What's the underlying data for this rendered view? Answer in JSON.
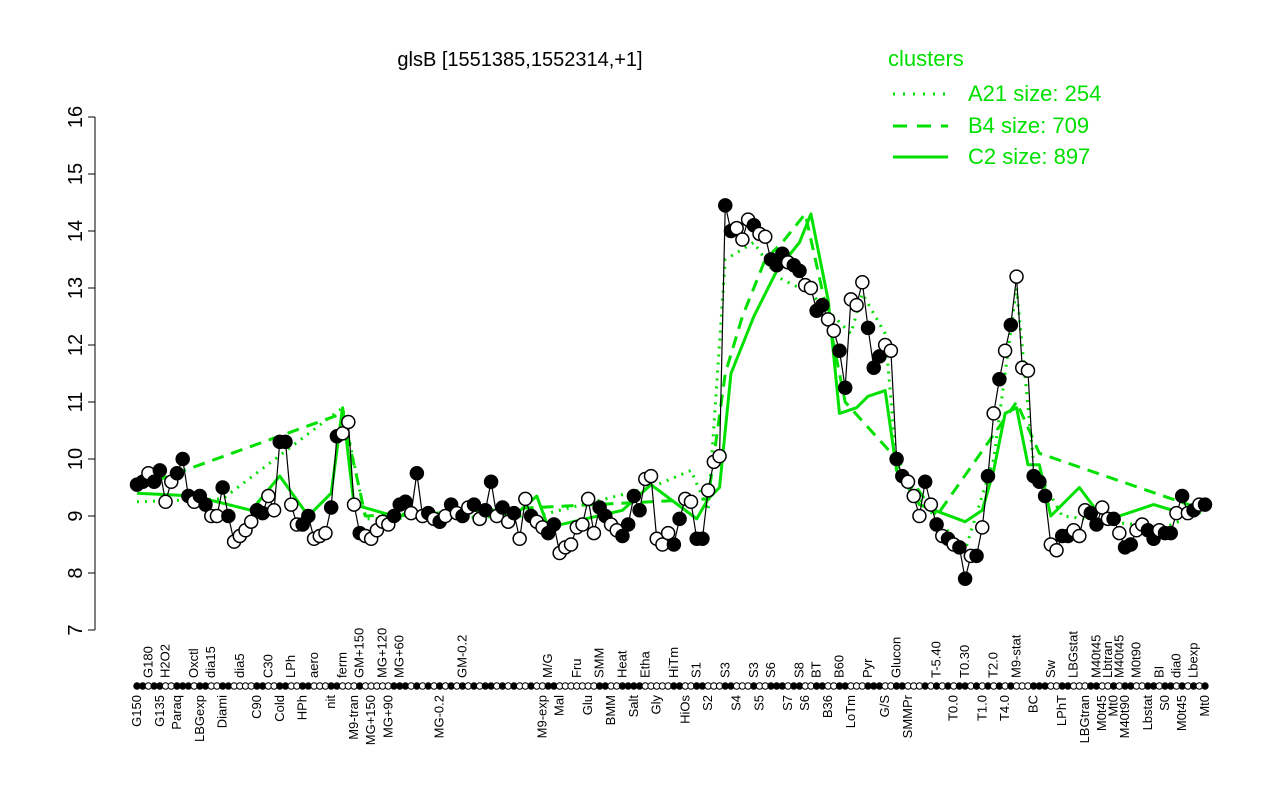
{
  "chart_data": {
    "type": "line",
    "title": "glsB [1551385,1552314,+1]",
    "xlabel": "",
    "ylabel": "",
    "ylim": [
      7,
      16
    ],
    "yticks": [
      "7",
      "8",
      "9",
      "10",
      "11",
      "12",
      "13",
      "14",
      "15",
      "16"
    ],
    "grid": false,
    "legend": {
      "title": "clusters",
      "placement": "top-right",
      "entries": [
        {
          "label": "A21 size: 254",
          "style": "dotted"
        },
        {
          "label": "B4 size: 709",
          "style": "dashed"
        },
        {
          "label": "C2 size: 897",
          "style": "solid"
        }
      ]
    },
    "colors": {
      "data": "#000000",
      "clusters": "#00e000"
    },
    "points": [
      [
        "G150",
        9.55,
        1
      ],
      [
        "",
        9.6,
        1
      ],
      [
        "G180",
        9.75,
        0
      ],
      [
        "",
        9.6,
        1
      ],
      [
        "G135",
        9.8,
        1
      ],
      [
        "H2O2",
        9.25,
        0
      ],
      [
        "",
        9.6,
        0
      ],
      [
        "Paraq",
        9.75,
        1
      ],
      [
        "",
        10.0,
        1
      ],
      [
        "",
        9.35,
        1
      ],
      [
        "Oxctl",
        9.25,
        0
      ],
      [
        "LBGexp",
        9.35,
        1
      ],
      [
        "",
        9.2,
        1
      ],
      [
        "dia15",
        9.0,
        0
      ],
      [
        "",
        9.0,
        0
      ],
      [
        "Diami",
        9.5,
        1
      ],
      [
        "",
        9.0,
        1
      ],
      [
        "",
        8.55,
        0
      ],
      [
        "dia5",
        8.65,
        0
      ],
      [
        "",
        8.75,
        0
      ],
      [
        "",
        8.9,
        0
      ],
      [
        "C90",
        9.1,
        1
      ],
      [
        "",
        9.05,
        1
      ],
      [
        "C30",
        9.35,
        0
      ],
      [
        "",
        9.1,
        0
      ],
      [
        "Cold",
        10.3,
        1
      ],
      [
        "",
        10.3,
        1
      ],
      [
        "LPh",
        9.2,
        0
      ],
      [
        "",
        8.85,
        0
      ],
      [
        "HPh",
        8.85,
        1
      ],
      [
        "",
        9.0,
        1
      ],
      [
        "aero",
        8.6,
        0
      ],
      [
        "",
        8.65,
        0
      ],
      [
        "",
        8.7,
        0
      ],
      [
        "nit",
        9.15,
        1
      ],
      [
        "",
        10.4,
        1
      ],
      [
        "ferm",
        10.45,
        0
      ],
      [
        "",
        10.65,
        0
      ],
      [
        "M9-tran",
        9.2,
        0
      ],
      [
        "GM+150",
        8.7,
        1
      ],
      [
        "",
        8.65,
        0
      ],
      [
        "MG+150",
        8.6,
        0
      ],
      [
        "",
        8.75,
        0
      ],
      [
        "MG+120",
        8.9,
        0
      ],
      [
        "MG+90",
        8.85,
        0
      ],
      [
        "",
        9.0,
        1
      ],
      [
        "MG+60",
        9.2,
        1
      ],
      [
        "",
        9.25,
        1
      ],
      [
        "",
        9.05,
        0
      ],
      [
        "",
        9.75,
        1
      ],
      [
        "",
        9.0,
        0
      ],
      [
        "",
        9.05,
        1
      ],
      [
        "",
        8.95,
        0
      ],
      [
        "MG-0.2",
        8.9,
        1
      ],
      [
        "",
        9.0,
        0
      ],
      [
        "",
        9.2,
        1
      ],
      [
        "",
        9.05,
        0
      ],
      [
        "GM-0.2",
        9.0,
        1
      ],
      [
        "",
        9.15,
        0
      ],
      [
        "",
        9.2,
        1
      ],
      [
        "",
        8.95,
        0
      ],
      [
        "",
        9.1,
        1
      ],
      [
        "",
        9.6,
        1
      ],
      [
        "",
        9.0,
        0
      ],
      [
        "",
        9.15,
        1
      ],
      [
        "",
        8.9,
        0
      ],
      [
        "",
        9.05,
        1
      ],
      [
        "",
        8.6,
        0
      ],
      [
        "",
        9.3,
        0
      ],
      [
        "",
        9.0,
        1
      ],
      [
        "",
        8.9,
        0
      ],
      [
        "M9-exp",
        8.8,
        0
      ],
      [
        "M/G",
        8.7,
        1
      ],
      [
        "",
        8.85,
        1
      ],
      [
        "Mal",
        8.35,
        0
      ],
      [
        "",
        8.45,
        0
      ],
      [
        "",
        8.5,
        0
      ],
      [
        "Fru",
        8.8,
        0
      ],
      [
        "",
        8.85,
        0
      ],
      [
        "Glu",
        9.3,
        0
      ],
      [
        "",
        8.7,
        0
      ],
      [
        "SMM",
        9.15,
        1
      ],
      [
        "",
        9.0,
        1
      ],
      [
        "BMM",
        8.85,
        0
      ],
      [
        "",
        8.75,
        0
      ],
      [
        "Heat",
        8.65,
        1
      ],
      [
        "",
        8.85,
        1
      ],
      [
        "Salt",
        9.35,
        1
      ],
      [
        "",
        9.1,
        1
      ],
      [
        "Etha",
        9.65,
        0
      ],
      [
        "",
        9.7,
        0
      ],
      [
        "Gly",
        8.6,
        0
      ],
      [
        "",
        8.5,
        0
      ],
      [
        "",
        8.7,
        0
      ],
      [
        "HiTm",
        8.5,
        1
      ],
      [
        "",
        8.95,
        1
      ],
      [
        "HiOs",
        9.3,
        0
      ],
      [
        "",
        9.25,
        0
      ],
      [
        "S1",
        8.6,
        1
      ],
      [
        "",
        8.6,
        1
      ],
      [
        "S2",
        9.45,
        0
      ],
      [
        "",
        9.95,
        0
      ],
      [
        "",
        10.05,
        0
      ],
      [
        "S3",
        14.45,
        1
      ],
      [
        "",
        14.0,
        1
      ],
      [
        "S4",
        14.05,
        0
      ],
      [
        "",
        13.85,
        0
      ],
      [
        "",
        14.2,
        0
      ],
      [
        "S3",
        14.1,
        1
      ],
      [
        "S5",
        13.95,
        0
      ],
      [
        "",
        13.9,
        0
      ],
      [
        "S6",
        13.5,
        1
      ],
      [
        "",
        13.4,
        1
      ],
      [
        "",
        13.6,
        1
      ],
      [
        "S7",
        13.45,
        0
      ],
      [
        "",
        13.4,
        1
      ],
      [
        "S8",
        13.3,
        1
      ],
      [
        "S6",
        13.05,
        0
      ],
      [
        "",
        13.0,
        0
      ],
      [
        "BT",
        12.6,
        1
      ],
      [
        "",
        12.7,
        1
      ],
      [
        "B36",
        12.45,
        0
      ],
      [
        "",
        12.25,
        0
      ],
      [
        "B60",
        11.9,
        1
      ],
      [
        "",
        11.25,
        1
      ],
      [
        "LoTm",
        12.8,
        0
      ],
      [
        "",
        12.7,
        0
      ],
      [
        "",
        13.1,
        0
      ],
      [
        "Pyr",
        12.3,
        1
      ],
      [
        "",
        11.6,
        1
      ],
      [
        "",
        11.8,
        1
      ],
      [
        "G/S",
        12.0,
        0
      ],
      [
        "",
        11.9,
        0
      ],
      [
        "Glucon",
        10.0,
        1
      ],
      [
        "",
        9.7,
        1
      ],
      [
        "SMMPr",
        9.6,
        0
      ],
      [
        "",
        9.35,
        0
      ],
      [
        "",
        9.0,
        0
      ],
      [
        "",
        9.6,
        1
      ],
      [
        "",
        9.2,
        0
      ],
      [
        "T-5.40",
        8.85,
        1
      ],
      [
        "",
        8.65,
        0
      ],
      [
        "",
        8.6,
        1
      ],
      [
        "T0.0",
        8.5,
        0
      ],
      [
        "",
        8.45,
        1
      ],
      [
        "T0.30",
        7.9,
        1
      ],
      [
        "",
        8.3,
        0
      ],
      [
        "",
        8.3,
        1
      ],
      [
        "T1.0",
        8.8,
        0
      ],
      [
        "",
        9.7,
        1
      ],
      [
        "T2.0",
        10.8,
        0
      ],
      [
        "",
        11.4,
        1
      ],
      [
        "T4.0",
        11.9,
        0
      ],
      [
        "",
        12.35,
        1
      ],
      [
        "M9-stat",
        13.2,
        0
      ],
      [
        "",
        11.6,
        0
      ],
      [
        "",
        11.55,
        0
      ],
      [
        "BC",
        9.7,
        1
      ],
      [
        "",
        9.6,
        1
      ],
      [
        "",
        9.35,
        1
      ],
      [
        "Sw",
        8.5,
        0
      ],
      [
        "",
        8.4,
        0
      ],
      [
        "LPhT",
        8.65,
        1
      ],
      [
        "",
        8.65,
        1
      ],
      [
        "LBGstat",
        8.75,
        0
      ],
      [
        "",
        8.65,
        0
      ],
      [
        "LBGtran",
        9.1,
        0
      ],
      [
        "",
        9.05,
        1
      ],
      [
        "M40t45",
        8.85,
        1
      ],
      [
        "M0t45",
        9.15,
        0
      ],
      [
        "Lbtran",
        8.95,
        0
      ],
      [
        "Mt0",
        8.95,
        1
      ],
      [
        "M40t45",
        8.7,
        0
      ],
      [
        "M40t90",
        8.45,
        1
      ],
      [
        "",
        8.5,
        1
      ],
      [
        "M0t90",
        8.75,
        0
      ],
      [
        "",
        8.85,
        0
      ],
      [
        "Lbstat",
        8.75,
        1
      ],
      [
        "",
        8.6,
        1
      ],
      [
        "BI",
        8.75,
        0
      ],
      [
        "S0",
        8.7,
        1
      ],
      [
        "",
        8.7,
        1
      ],
      [
        "dia0",
        9.05,
        0
      ],
      [
        "M0t45",
        9.35,
        1
      ],
      [
        "",
        9.05,
        0
      ],
      [
        "Lbexp",
        9.1,
        1
      ],
      [
        "",
        9.2,
        0
      ],
      [
        "Mt0",
        9.2,
        1
      ]
    ],
    "cluster_lines": {
      "C2": [
        [
          0,
          9.4
        ],
        [
          10,
          9.35
        ],
        [
          20,
          9.1
        ],
        [
          25,
          9.7
        ],
        [
          30,
          9.0
        ],
        [
          34,
          9.4
        ],
        [
          36,
          10.9
        ],
        [
          38,
          9.2
        ],
        [
          45,
          9.0
        ],
        [
          60,
          9.1
        ],
        [
          66,
          9.0
        ],
        [
          70,
          9.35
        ],
        [
          72,
          8.8
        ],
        [
          85,
          9.1
        ],
        [
          90,
          9.55
        ],
        [
          98,
          8.95
        ],
        [
          100,
          9.3
        ],
        [
          102,
          9.5
        ],
        [
          104,
          11.5
        ],
        [
          108,
          12.5
        ],
        [
          112,
          13.3
        ],
        [
          116,
          13.8
        ],
        [
          118,
          14.3
        ],
        [
          121,
          12.8
        ],
        [
          123,
          10.8
        ],
        [
          126,
          10.9
        ],
        [
          128,
          11.1
        ],
        [
          131,
          11.2
        ],
        [
          133,
          9.8
        ],
        [
          137,
          9.2
        ],
        [
          145,
          8.9
        ],
        [
          148,
          9.1
        ],
        [
          150,
          9.8
        ],
        [
          152,
          10.8
        ],
        [
          154,
          10.9
        ],
        [
          156,
          9.9
        ],
        [
          158,
          9.9
        ],
        [
          160,
          9.0
        ],
        [
          162,
          9.2
        ],
        [
          165,
          9.5
        ],
        [
          168,
          9.1
        ],
        [
          172,
          9.0
        ],
        [
          178,
          9.2
        ],
        [
          183,
          9.05
        ],
        [
          187,
          9.2
        ]
      ],
      "A21": [
        [
          0,
          9.25
        ],
        [
          15,
          9.3
        ],
        [
          36,
          10.9
        ],
        [
          40,
          8.95
        ],
        [
          70,
          9.0
        ],
        [
          90,
          9.5
        ],
        [
          97,
          9.8
        ],
        [
          100,
          9.1
        ],
        [
          103,
          13.5
        ],
        [
          108,
          13.8
        ],
        [
          112,
          13.2
        ],
        [
          118,
          12.9
        ],
        [
          121,
          12.6
        ],
        [
          125,
          12.2
        ],
        [
          127,
          12.9
        ],
        [
          131,
          12.2
        ],
        [
          133,
          9.9
        ],
        [
          137,
          9.3
        ],
        [
          145,
          8.4
        ],
        [
          150,
          10.0
        ],
        [
          154,
          13.0
        ],
        [
          157,
          9.9
        ],
        [
          162,
          9.0
        ],
        [
          170,
          8.9
        ],
        [
          180,
          8.8
        ],
        [
          187,
          9.1
        ]
      ],
      "B4": [
        [
          0,
          9.5
        ],
        [
          36,
          10.8
        ],
        [
          40,
          9.0
        ],
        [
          100,
          9.3
        ],
        [
          103,
          11.5
        ],
        [
          106,
          12.5
        ],
        [
          110,
          13.5
        ],
        [
          113,
          13.8
        ],
        [
          117,
          14.3
        ],
        [
          121,
          12.5
        ],
        [
          124,
          11.0
        ],
        [
          133,
          10.0
        ],
        [
          140,
          9.0
        ],
        [
          154,
          11.0
        ],
        [
          158,
          10.1
        ],
        [
          187,
          9.1
        ]
      ]
    }
  }
}
